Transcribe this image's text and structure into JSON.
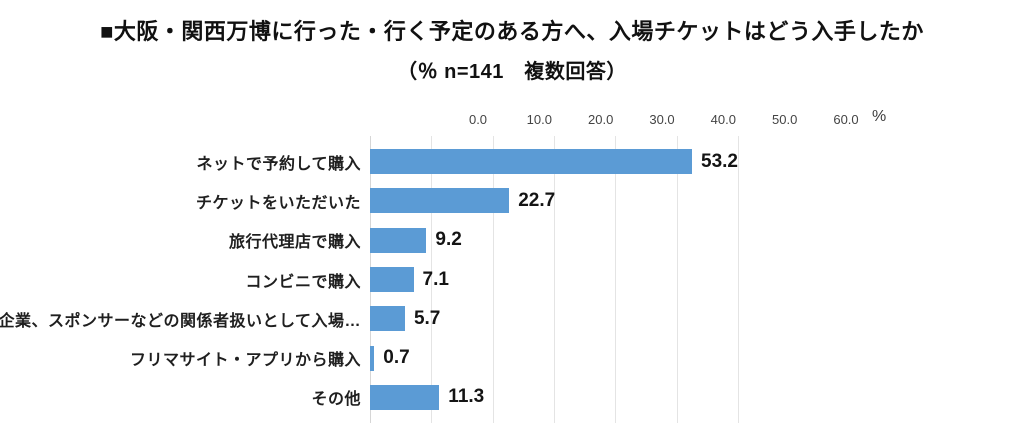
{
  "chart_data": {
    "type": "bar",
    "orientation": "horizontal",
    "title": "■大阪・関西万博に行った・行く予定のある方へ、入場チケットはどう入手したか",
    "subtitle": "（％ n=141　複数回答）",
    "categories": [
      "ネットで予約して購入",
      "チケットをいただいた",
      "旅行代理店で購入",
      "コンビニで購入",
      "企業、スポンサーなどの関係者扱いとして入場…",
      "フリマサイト・アプリから購入",
      "その他"
    ],
    "values": [
      53.2,
      22.7,
      9.2,
      7.1,
      5.7,
      0.7,
      11.3
    ],
    "value_labels": [
      "53.2",
      "22.7",
      "9.2",
      "7.1",
      "5.7",
      "0.7",
      "11.3"
    ],
    "axis_ticks": [
      "0.0",
      "10.0",
      "20.0",
      "30.0",
      "40.0",
      "50.0",
      "60.0"
    ],
    "axis_unit": "%",
    "xlim": [
      0,
      60
    ],
    "grid": true,
    "legend": false,
    "bar_color": "#5b9bd5",
    "gridline_color": "#e4e4e4"
  }
}
